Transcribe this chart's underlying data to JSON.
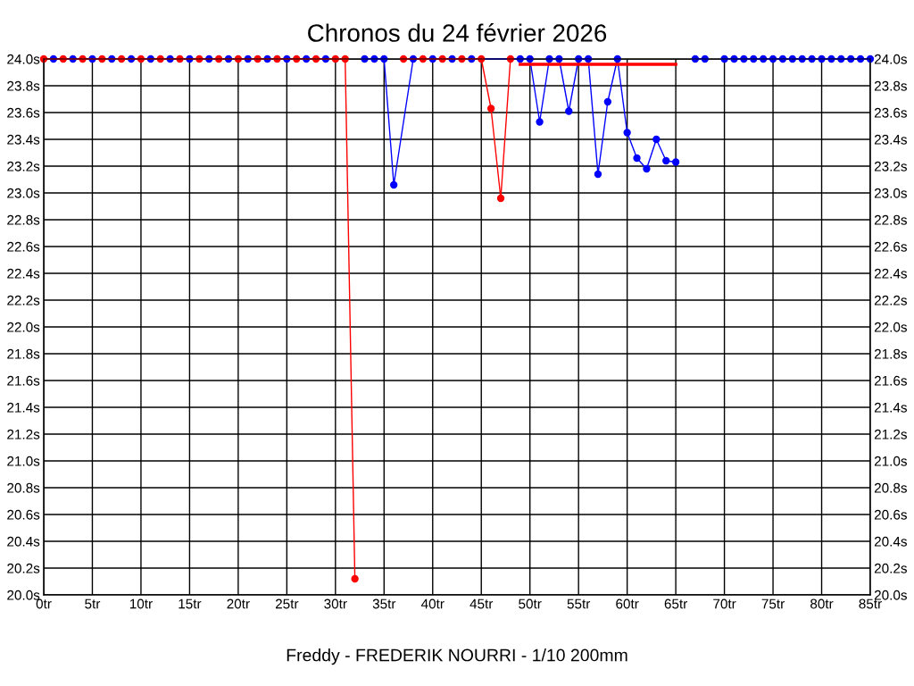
{
  "chart_data": {
    "type": "line",
    "title": "Chronos du 24 février 2026",
    "xlabel": "Freddy - FREDERIK NOURRI - 1/10 200mm",
    "xlim": [
      0,
      85
    ],
    "xticks": [
      {
        "value": 0,
        "label": "0tr"
      },
      {
        "value": 5,
        "label": "5tr"
      },
      {
        "value": 10,
        "label": "10tr"
      },
      {
        "value": 15,
        "label": "15tr"
      },
      {
        "value": 20,
        "label": "20tr"
      },
      {
        "value": 25,
        "label": "25tr"
      },
      {
        "value": 30,
        "label": "30tr"
      },
      {
        "value": 35,
        "label": "35tr"
      },
      {
        "value": 40,
        "label": "40tr"
      },
      {
        "value": 45,
        "label": "45tr"
      },
      {
        "value": 50,
        "label": "50tr"
      },
      {
        "value": 55,
        "label": "55tr"
      },
      {
        "value": 60,
        "label": "60tr"
      },
      {
        "value": 65,
        "label": "65tr"
      },
      {
        "value": 70,
        "label": "70tr"
      },
      {
        "value": 75,
        "label": "75tr"
      },
      {
        "value": 80,
        "label": "80tr"
      },
      {
        "value": 85,
        "label": "85tr"
      }
    ],
    "ylim": [
      20.0,
      24.0
    ],
    "yticks": [
      {
        "value": 20.0,
        "label": "20.0s"
      },
      {
        "value": 20.2,
        "label": "20.2s"
      },
      {
        "value": 20.4,
        "label": "20.4s"
      },
      {
        "value": 20.6,
        "label": "20.6s"
      },
      {
        "value": 20.8,
        "label": "20.8s"
      },
      {
        "value": 21.0,
        "label": "21.0s"
      },
      {
        "value": 21.2,
        "label": "21.2s"
      },
      {
        "value": 21.4,
        "label": "21.4s"
      },
      {
        "value": 21.6,
        "label": "21.6s"
      },
      {
        "value": 21.8,
        "label": "21.8s"
      },
      {
        "value": 22.0,
        "label": "22.0s"
      },
      {
        "value": 22.2,
        "label": "22.2s"
      },
      {
        "value": 22.4,
        "label": "22.4s"
      },
      {
        "value": 22.6,
        "label": "22.6s"
      },
      {
        "value": 22.8,
        "label": "22.8s"
      },
      {
        "value": 23.0,
        "label": "23.0s"
      },
      {
        "value": 23.2,
        "label": "23.2s"
      },
      {
        "value": 23.4,
        "label": "23.4s"
      },
      {
        "value": 23.6,
        "label": "23.6s"
      },
      {
        "value": 23.8,
        "label": "23.8s"
      },
      {
        "value": 24.0,
        "label": "24.0s"
      }
    ],
    "y2lim": [
      20.0,
      24.0
    ],
    "y2ticks": [
      {
        "value": 20.0,
        "label": "20.0s"
      },
      {
        "value": 20.2,
        "label": "20.2s"
      },
      {
        "value": 20.4,
        "label": "20.4s"
      },
      {
        "value": 20.6,
        "label": "20.6s"
      },
      {
        "value": 20.8,
        "label": "20.8s"
      },
      {
        "value": 21.0,
        "label": "21.0s"
      },
      {
        "value": 21.2,
        "label": "21.2s"
      },
      {
        "value": 21.4,
        "label": "21.4s"
      },
      {
        "value": 21.6,
        "label": "21.6s"
      },
      {
        "value": 21.8,
        "label": "21.8s"
      },
      {
        "value": 22.0,
        "label": "22.0s"
      },
      {
        "value": 22.2,
        "label": "22.2s"
      },
      {
        "value": 22.4,
        "label": "22.4s"
      },
      {
        "value": 22.6,
        "label": "22.6s"
      },
      {
        "value": 22.8,
        "label": "22.8s"
      },
      {
        "value": 23.0,
        "label": "23.0s"
      },
      {
        "value": 23.2,
        "label": "23.2s"
      },
      {
        "value": 23.4,
        "label": "23.4s"
      },
      {
        "value": 23.6,
        "label": "23.6s"
      },
      {
        "value": 23.8,
        "label": "23.8s"
      },
      {
        "value": 24.0,
        "label": "24.0s"
      }
    ],
    "grid": true,
    "marker": "circle",
    "line_style": "solid",
    "series": [
      {
        "color": "#0000ff",
        "x": [
          1,
          3,
          5,
          7,
          9,
          11,
          13,
          15,
          17,
          19,
          21,
          23,
          25,
          27,
          29,
          31,
          33,
          34,
          35,
          36,
          38,
          40,
          42,
          44,
          49,
          50,
          51,
          52,
          53,
          54,
          55,
          56,
          57,
          58,
          59,
          60,
          61,
          62,
          63,
          64,
          65,
          66,
          67,
          68,
          69,
          70,
          71,
          72,
          73,
          74,
          75,
          76,
          77,
          78,
          79,
          80,
          81,
          82,
          83,
          84,
          85
        ],
        "values": [
          24.0,
          24.0,
          24.0,
          24.0,
          24.0,
          24.0,
          24.0,
          24.0,
          24.0,
          24.0,
          24.0,
          24.0,
          24.0,
          24.0,
          24.0,
          null,
          24.0,
          24.0,
          24.0,
          23.06,
          24.0,
          24.0,
          24.0,
          24.0,
          24.0,
          24.0,
          23.53,
          24.0,
          24.0,
          23.61,
          24.0,
          24.0,
          23.14,
          23.68,
          24.0,
          23.45,
          23.26,
          23.18,
          23.4,
          23.24,
          23.23,
          null,
          24.0,
          24.0,
          null,
          24.0,
          24.0,
          24.0,
          24.0,
          24.0,
          24.0,
          24.0,
          24.0,
          24.0,
          24.0,
          24.0,
          24.0,
          24.0,
          24.0,
          24.0,
          24.0
        ]
      },
      {
        "color": "#ff0000",
        "x": [
          0,
          2,
          4,
          6,
          8,
          10,
          12,
          14,
          16,
          18,
          20,
          22,
          24,
          26,
          28,
          30,
          31,
          32,
          34,
          37,
          39,
          41,
          43,
          45,
          46,
          47,
          48
        ],
        "values": [
          24.0,
          24.0,
          24.0,
          24.0,
          24.0,
          24.0,
          24.0,
          24.0,
          24.0,
          24.0,
          24.0,
          24.0,
          24.0,
          24.0,
          24.0,
          24.0,
          24.0,
          20.12,
          null,
          24.0,
          24.0,
          24.0,
          24.0,
          24.0,
          23.63,
          22.96,
          24.0
        ]
      },
      {
        "color": "#ff0000",
        "marker": "none",
        "x": [
          49,
          65
        ],
        "values": [
          23.96,
          23.96
        ]
      }
    ]
  }
}
